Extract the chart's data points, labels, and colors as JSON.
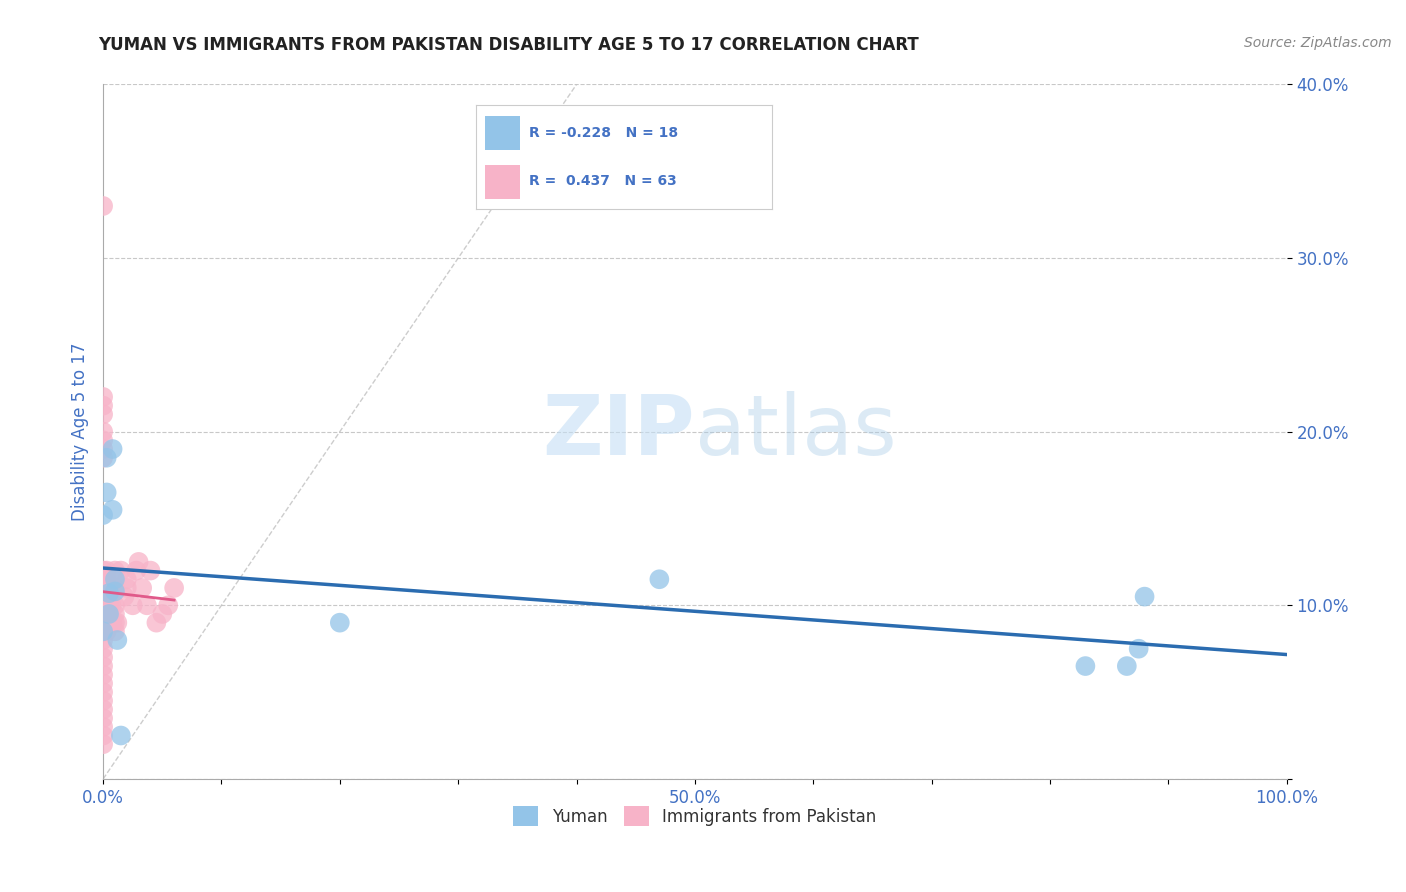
{
  "title": "YUMAN VS IMMIGRANTS FROM PAKISTAN DISABILITY AGE 5 TO 17 CORRELATION CHART",
  "source": "Source: ZipAtlas.com",
  "ylabel": "Disability Age 5 to 17",
  "xlim": [
    0,
    1.0
  ],
  "ylim": [
    0,
    0.4
  ],
  "ytick_labels": [
    "",
    "10.0%",
    "20.0%",
    "30.0%",
    "40.0%"
  ],
  "xtick_labels": [
    "0.0%",
    "",
    "",
    "",
    "",
    "50.0%",
    "",
    "",
    "",
    "",
    "100.0%"
  ],
  "yuman_color": "#93c4e8",
  "pakistan_color": "#f7b3c8",
  "yuman_line_color": "#2b6cb0",
  "pakistan_line_color": "#e05a8a",
  "watermark_zip": "ZIP",
  "watermark_atlas": "atlas",
  "yuman_points_x": [
    0.0,
    0.0,
    0.003,
    0.003,
    0.005,
    0.005,
    0.008,
    0.008,
    0.01,
    0.01,
    0.012,
    0.015,
    0.2,
    0.47,
    0.83,
    0.865,
    0.875,
    0.88
  ],
  "yuman_points_y": [
    0.085,
    0.152,
    0.185,
    0.165,
    0.107,
    0.095,
    0.19,
    0.155,
    0.108,
    0.115,
    0.08,
    0.025,
    0.09,
    0.115,
    0.065,
    0.065,
    0.075,
    0.105
  ],
  "pakistan_points_x": [
    0.0,
    0.0,
    0.0,
    0.0,
    0.0,
    0.0,
    0.0,
    0.0,
    0.0,
    0.0,
    0.0,
    0.0,
    0.0,
    0.0,
    0.0,
    0.0,
    0.0,
    0.0,
    0.0,
    0.0,
    0.0,
    0.0,
    0.0,
    0.0,
    0.0,
    0.0,
    0.0,
    0.0,
    0.0,
    0.003,
    0.003,
    0.003,
    0.003,
    0.003,
    0.003,
    0.003,
    0.005,
    0.005,
    0.005,
    0.007,
    0.007,
    0.008,
    0.01,
    0.01,
    0.01,
    0.01,
    0.01,
    0.01,
    0.012,
    0.015,
    0.018,
    0.02,
    0.02,
    0.025,
    0.028,
    0.03,
    0.033,
    0.037,
    0.04,
    0.045,
    0.05,
    0.055,
    0.06
  ],
  "pakistan_points_y": [
    0.02,
    0.025,
    0.03,
    0.035,
    0.04,
    0.045,
    0.05,
    0.055,
    0.06,
    0.065,
    0.07,
    0.075,
    0.08,
    0.085,
    0.09,
    0.095,
    0.1,
    0.105,
    0.11,
    0.115,
    0.12,
    0.33,
    0.215,
    0.22,
    0.21,
    0.2,
    0.195,
    0.19,
    0.185,
    0.085,
    0.09,
    0.1,
    0.105,
    0.11,
    0.115,
    0.12,
    0.09,
    0.1,
    0.105,
    0.1,
    0.11,
    0.09,
    0.09,
    0.085,
    0.095,
    0.1,
    0.11,
    0.12,
    0.09,
    0.12,
    0.105,
    0.11,
    0.115,
    0.1,
    0.12,
    0.125,
    0.11,
    0.1,
    0.12,
    0.09,
    0.095,
    0.1,
    0.11
  ],
  "grid_color": "#c8c8c8",
  "background_color": "#ffffff",
  "title_color": "#222222",
  "axis_label_color": "#4472c4",
  "tick_label_color": "#4472c4"
}
